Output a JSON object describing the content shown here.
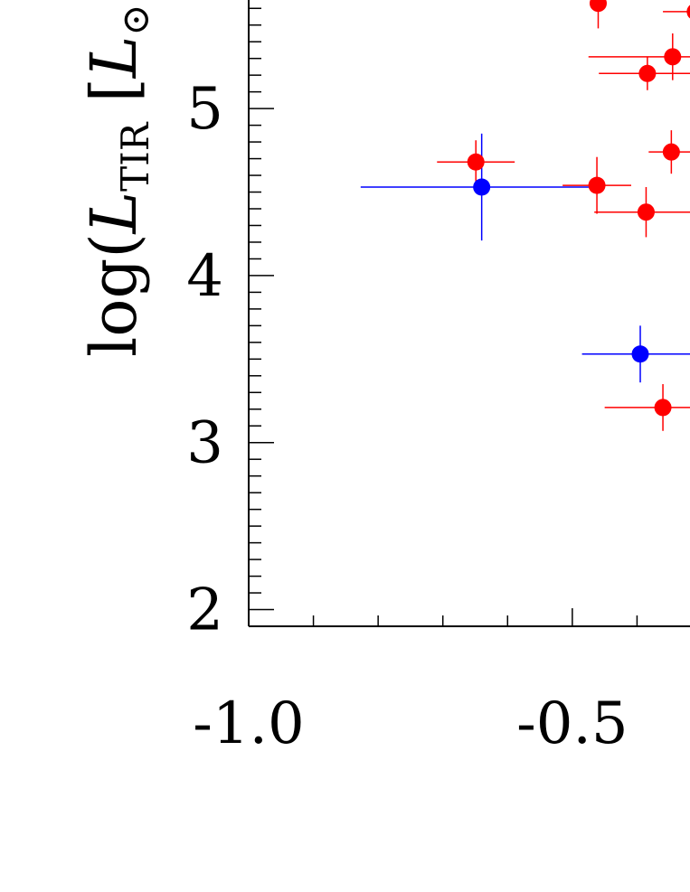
{
  "chart_data": {
    "type": "scatter",
    "title": "",
    "xlabel": "",
    "ylabel": {
      "prefix": "log(",
      "symbol": "L",
      "subscript": "TIR",
      "unit_open": " [",
      "unit_symbol": "L",
      "unit_sub": "⊙"
    },
    "xlim": [
      -1.0,
      -0.3
    ],
    "ylim": [
      1.9,
      5.65
    ],
    "x_ticks": [
      {
        "value": -1.0,
        "label": "-1.0"
      },
      {
        "value": -0.5,
        "label": "-0.5"
      }
    ],
    "y_ticks": [
      {
        "value": 2,
        "label": "2"
      },
      {
        "value": 3,
        "label": "3"
      },
      {
        "value": 4,
        "label": "4"
      },
      {
        "value": 5,
        "label": "5"
      }
    ],
    "x_minor_step": 0.1,
    "y_minor_step": 0.1,
    "grid": false,
    "series": [
      {
        "color": "#ff0000",
        "points": [
          {
            "x": -0.46,
            "y": 5.63,
            "xerr": 0.0,
            "yerr": 0.15
          },
          {
            "x": -0.31,
            "y": 5.58,
            "xerr": 0.05,
            "yerr": 0.15
          },
          {
            "x": -0.345,
            "y": 5.31,
            "xerr": 0.13,
            "yerr": 0.14
          },
          {
            "x": -0.384,
            "y": 5.21,
            "xerr": 0.075,
            "yerr": 0.1
          },
          {
            "x": -0.649,
            "y": 4.68,
            "xerr": 0.06,
            "yerr": 0.13
          },
          {
            "x": -0.347,
            "y": 4.74,
            "xerr": 0.035,
            "yerr": 0.13
          },
          {
            "x": -0.462,
            "y": 4.54,
            "xerr": 0.053,
            "yerr": 0.17
          },
          {
            "x": -0.386,
            "y": 4.38,
            "xerr": 0.08,
            "yerr": 0.15
          },
          {
            "x": -0.36,
            "y": 3.21,
            "xerr": 0.09,
            "yerr": 0.14
          }
        ]
      },
      {
        "color": "#0000ff",
        "points": [
          {
            "x": -0.64,
            "y": 4.53,
            "xerr": 0.187,
            "yerr": 0.32
          },
          {
            "x": -0.395,
            "y": 3.53,
            "xerr": 0.09,
            "yerr": 0.17
          }
        ]
      }
    ]
  }
}
